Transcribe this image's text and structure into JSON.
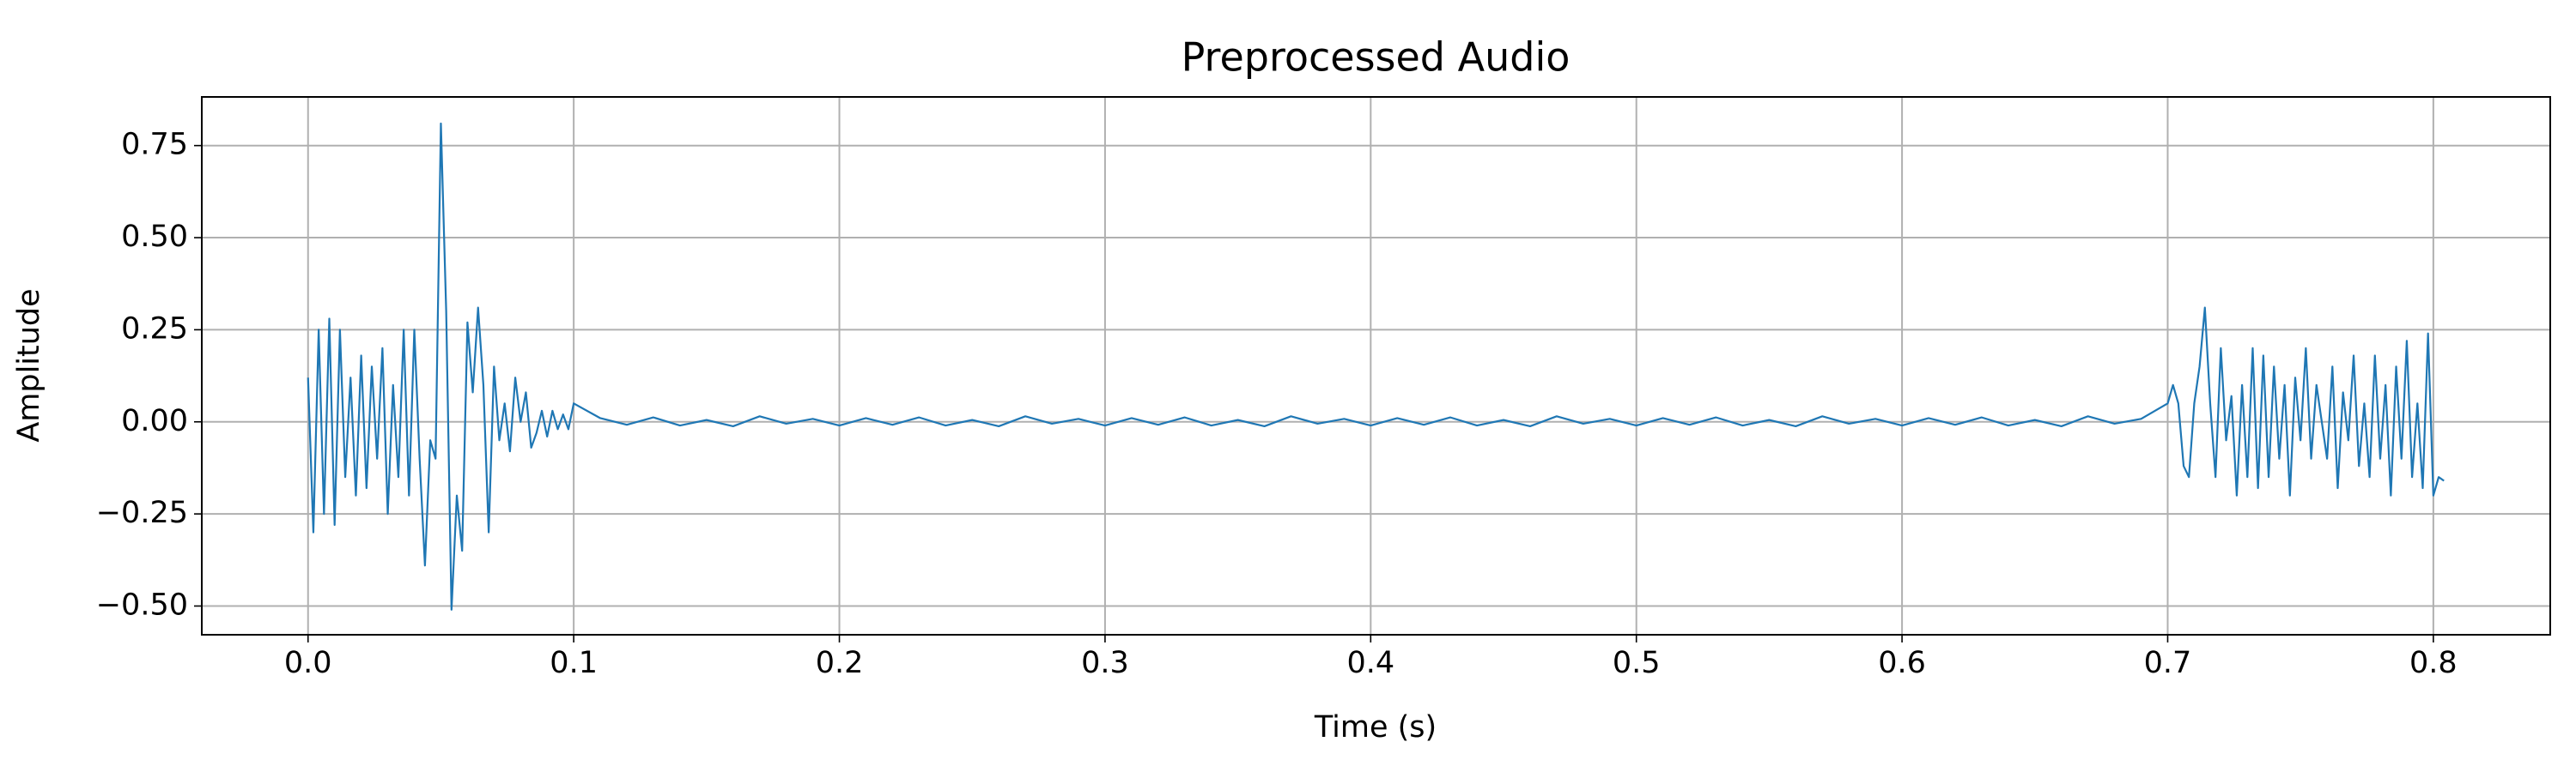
{
  "chart_data": {
    "type": "line",
    "title": "Preprocessed Audio",
    "x_label": "Time (s)",
    "y_label": "Amplitude",
    "x": [
      0.0,
      0.002,
      0.004,
      0.006,
      0.008,
      0.01,
      0.012,
      0.014,
      0.016,
      0.018,
      0.02,
      0.022,
      0.024,
      0.026,
      0.028,
      0.03,
      0.032,
      0.034,
      0.036,
      0.038,
      0.04,
      0.042,
      0.044,
      0.046,
      0.048,
      0.05,
      0.052,
      0.054,
      0.056,
      0.058,
      0.06,
      0.062,
      0.064,
      0.066,
      0.068,
      0.07,
      0.072,
      0.074,
      0.076,
      0.078,
      0.08,
      0.082,
      0.084,
      0.086,
      0.088,
      0.09,
      0.092,
      0.094,
      0.096,
      0.098,
      0.1,
      0.11,
      0.12,
      0.13,
      0.14,
      0.15,
      0.16,
      0.17,
      0.18,
      0.19,
      0.2,
      0.21,
      0.22,
      0.23,
      0.24,
      0.25,
      0.26,
      0.27,
      0.28,
      0.29,
      0.3,
      0.31,
      0.32,
      0.33,
      0.34,
      0.35,
      0.36,
      0.37,
      0.38,
      0.39,
      0.4,
      0.41,
      0.42,
      0.43,
      0.44,
      0.45,
      0.46,
      0.47,
      0.48,
      0.49,
      0.5,
      0.51,
      0.52,
      0.53,
      0.54,
      0.55,
      0.56,
      0.57,
      0.58,
      0.59,
      0.6,
      0.61,
      0.62,
      0.63,
      0.64,
      0.65,
      0.66,
      0.67,
      0.68,
      0.69,
      0.7,
      0.702,
      0.704,
      0.706,
      0.708,
      0.71,
      0.712,
      0.714,
      0.716,
      0.718,
      0.72,
      0.722,
      0.724,
      0.726,
      0.728,
      0.73,
      0.732,
      0.734,
      0.736,
      0.738,
      0.74,
      0.742,
      0.744,
      0.746,
      0.748,
      0.75,
      0.752,
      0.754,
      0.756,
      0.758,
      0.76,
      0.762,
      0.764,
      0.766,
      0.768,
      0.77,
      0.772,
      0.774,
      0.776,
      0.778,
      0.78,
      0.782,
      0.784,
      0.786,
      0.788,
      0.79,
      0.792,
      0.794,
      0.796,
      0.798,
      0.8,
      0.802,
      0.804
    ],
    "series": [
      {
        "color": "#1f77b4",
        "values": [
          0.12,
          -0.3,
          0.25,
          -0.25,
          0.28,
          -0.28,
          0.25,
          -0.15,
          0.12,
          -0.2,
          0.18,
          -0.18,
          0.15,
          -0.1,
          0.2,
          -0.25,
          0.1,
          -0.15,
          0.25,
          -0.2,
          0.25,
          -0.1,
          -0.39,
          -0.05,
          -0.1,
          0.81,
          0.3,
          -0.51,
          -0.2,
          -0.35,
          0.27,
          0.08,
          0.31,
          0.1,
          -0.3,
          0.15,
          -0.05,
          0.05,
          -0.08,
          0.12,
          0.0,
          0.08,
          -0.07,
          -0.03,
          0.03,
          -0.04,
          0.03,
          -0.02,
          0.02,
          -0.02,
          0.05,
          0.01,
          -0.008,
          0.012,
          -0.01,
          0.005,
          -0.012,
          0.015,
          -0.005,
          0.008,
          -0.01,
          0.01,
          -0.008,
          0.012,
          -0.01,
          0.005,
          -0.012,
          0.015,
          -0.005,
          0.008,
          -0.01,
          0.01,
          -0.008,
          0.012,
          -0.01,
          0.005,
          -0.012,
          0.015,
          -0.005,
          0.008,
          -0.01,
          0.01,
          -0.008,
          0.012,
          -0.01,
          0.005,
          -0.012,
          0.015,
          -0.005,
          0.008,
          -0.01,
          0.01,
          -0.008,
          0.012,
          -0.01,
          0.005,
          -0.012,
          0.015,
          -0.005,
          0.008,
          -0.01,
          0.01,
          -0.008,
          0.012,
          -0.01,
          0.005,
          -0.012,
          0.015,
          -0.005,
          0.008,
          0.05,
          0.1,
          0.05,
          -0.12,
          -0.15,
          0.05,
          0.15,
          0.31,
          0.05,
          -0.15,
          0.2,
          -0.05,
          0.07,
          -0.2,
          0.1,
          -0.15,
          0.2,
          -0.18,
          0.18,
          -0.15,
          0.15,
          -0.1,
          0.1,
          -0.2,
          0.12,
          -0.05,
          0.2,
          -0.1,
          0.1,
          0.0,
          -0.1,
          0.15,
          -0.18,
          0.08,
          -0.05,
          0.18,
          -0.12,
          0.05,
          -0.15,
          0.18,
          -0.1,
          0.1,
          -0.2,
          0.15,
          -0.1,
          0.22,
          -0.15,
          0.05,
          -0.18,
          0.24,
          -0.2,
          -0.15,
          -0.16
        ]
      }
    ],
    "xlim": [
      -0.04,
      0.844
    ],
    "ylim": [
      -0.578,
      0.882
    ],
    "xticks": [
      {
        "value": 0,
        "label": "0.0"
      },
      0.1,
      0.2,
      0.3,
      0.4,
      0.5,
      0.6,
      0.7,
      0.8
    ],
    "yticks": [
      {
        "value": -0.5,
        "label": "−0.50"
      },
      {
        "value": -0.25,
        "label": "−0.25"
      },
      {
        "value": 0,
        "label": "0.00"
      },
      0.25,
      {
        "value": 0.5,
        "label": "0.50"
      },
      0.75
    ],
    "grid": true
  }
}
